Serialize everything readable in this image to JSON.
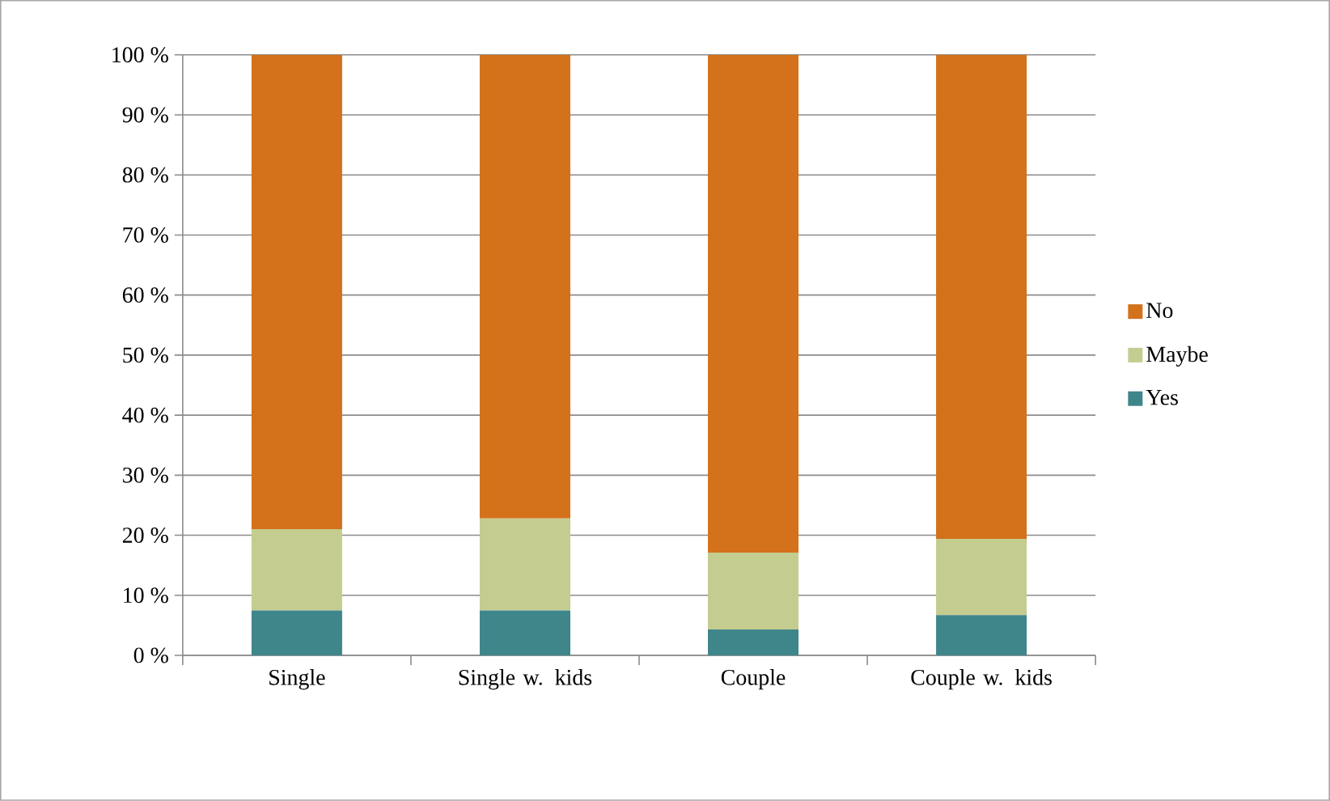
{
  "chart_data": {
    "type": "bar",
    "stacked": true,
    "categories": [
      "Single",
      "Single w. kids",
      "Couple",
      "Couple w. kids"
    ],
    "series": [
      {
        "name": "Yes",
        "color": "#3f868a",
        "values": [
          7.5,
          7.5,
          4.3,
          6.7
        ]
      },
      {
        "name": "Maybe",
        "color": "#c5cc8f",
        "values": [
          13.5,
          15.3,
          12.8,
          12.7
        ]
      },
      {
        "name": "No",
        "color": "#d4711b",
        "values": [
          79.0,
          77.2,
          82.9,
          80.6
        ]
      }
    ],
    "ylim": [
      0,
      100
    ],
    "yticks": [
      {
        "value": 0,
        "label": "0 %"
      },
      {
        "value": 10,
        "label": "10 %"
      },
      {
        "value": 20,
        "label": "20 %"
      },
      {
        "value": 30,
        "label": "30 %"
      },
      {
        "value": 40,
        "label": "40 %"
      },
      {
        "value": 50,
        "label": "50 %"
      },
      {
        "value": 60,
        "label": "60 %"
      },
      {
        "value": 70,
        "label": "70 %"
      },
      {
        "value": 80,
        "label": "80 %"
      },
      {
        "value": 90,
        "label": "90 %"
      },
      {
        "value": 100,
        "label": "100 %"
      }
    ],
    "grid": "y",
    "legend": "right"
  }
}
